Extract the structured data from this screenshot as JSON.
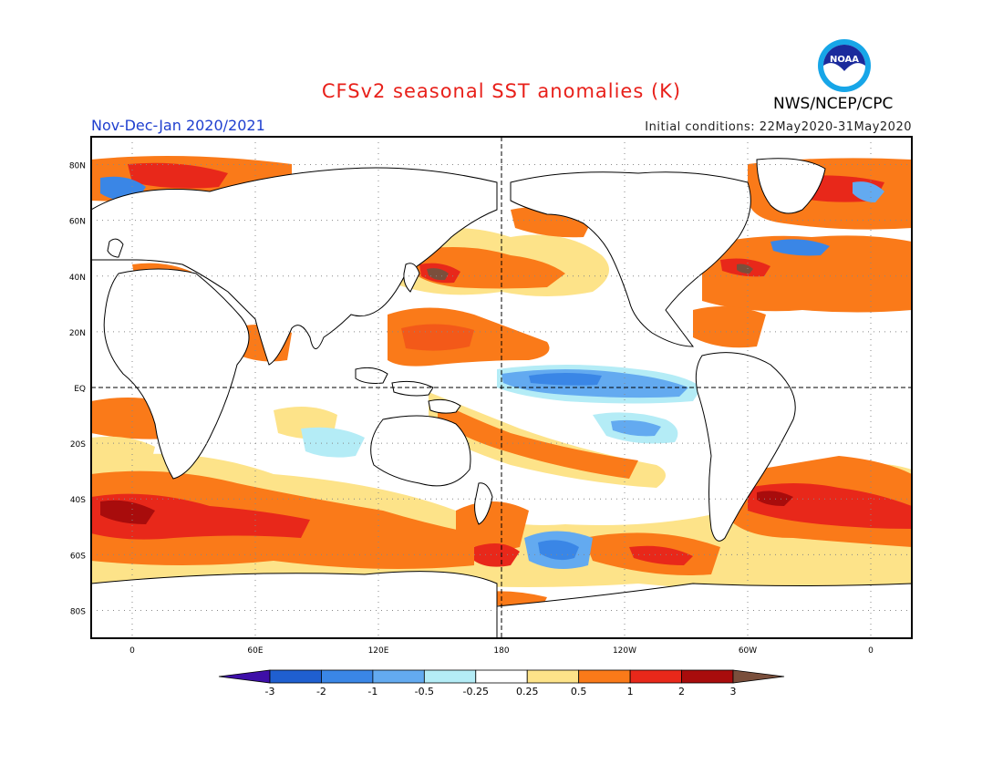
{
  "header": {
    "title": "CFSv2 seasonal SST anomalies (K)",
    "organization": "NWS/NCEP/CPC",
    "logo_text": "NOAA",
    "period": "Nov-Dec-Jan 2020/2021",
    "initial_conditions": "Initial conditions: 22May2020-31May2020"
  },
  "map": {
    "lat_labels": [
      "80N",
      "60N",
      "40N",
      "20N",
      "EQ",
      "20S",
      "40S",
      "60S",
      "80S"
    ],
    "lon_labels": [
      "0",
      "60E",
      "120E",
      "180",
      "120W",
      "60W",
      "0"
    ],
    "lon_range": [
      -20,
      380
    ],
    "lat_range": [
      -90,
      90
    ],
    "reference_lines": [
      "equator",
      "dateline"
    ]
  },
  "colorbar": {
    "ticks": [
      "-3",
      "-2",
      "-1",
      "-0.5",
      "-0.25",
      "0.25",
      "0.5",
      "1",
      "2",
      "3"
    ],
    "colors": [
      "#3e0fa8",
      "#1f5fd0",
      "#3a86e6",
      "#63aaf0",
      "#b4ecf6",
      "#ffffff",
      "#fde389",
      "#fa7a19",
      "#e8281a",
      "#a80c0c",
      "#7a4f3c"
    ]
  }
}
